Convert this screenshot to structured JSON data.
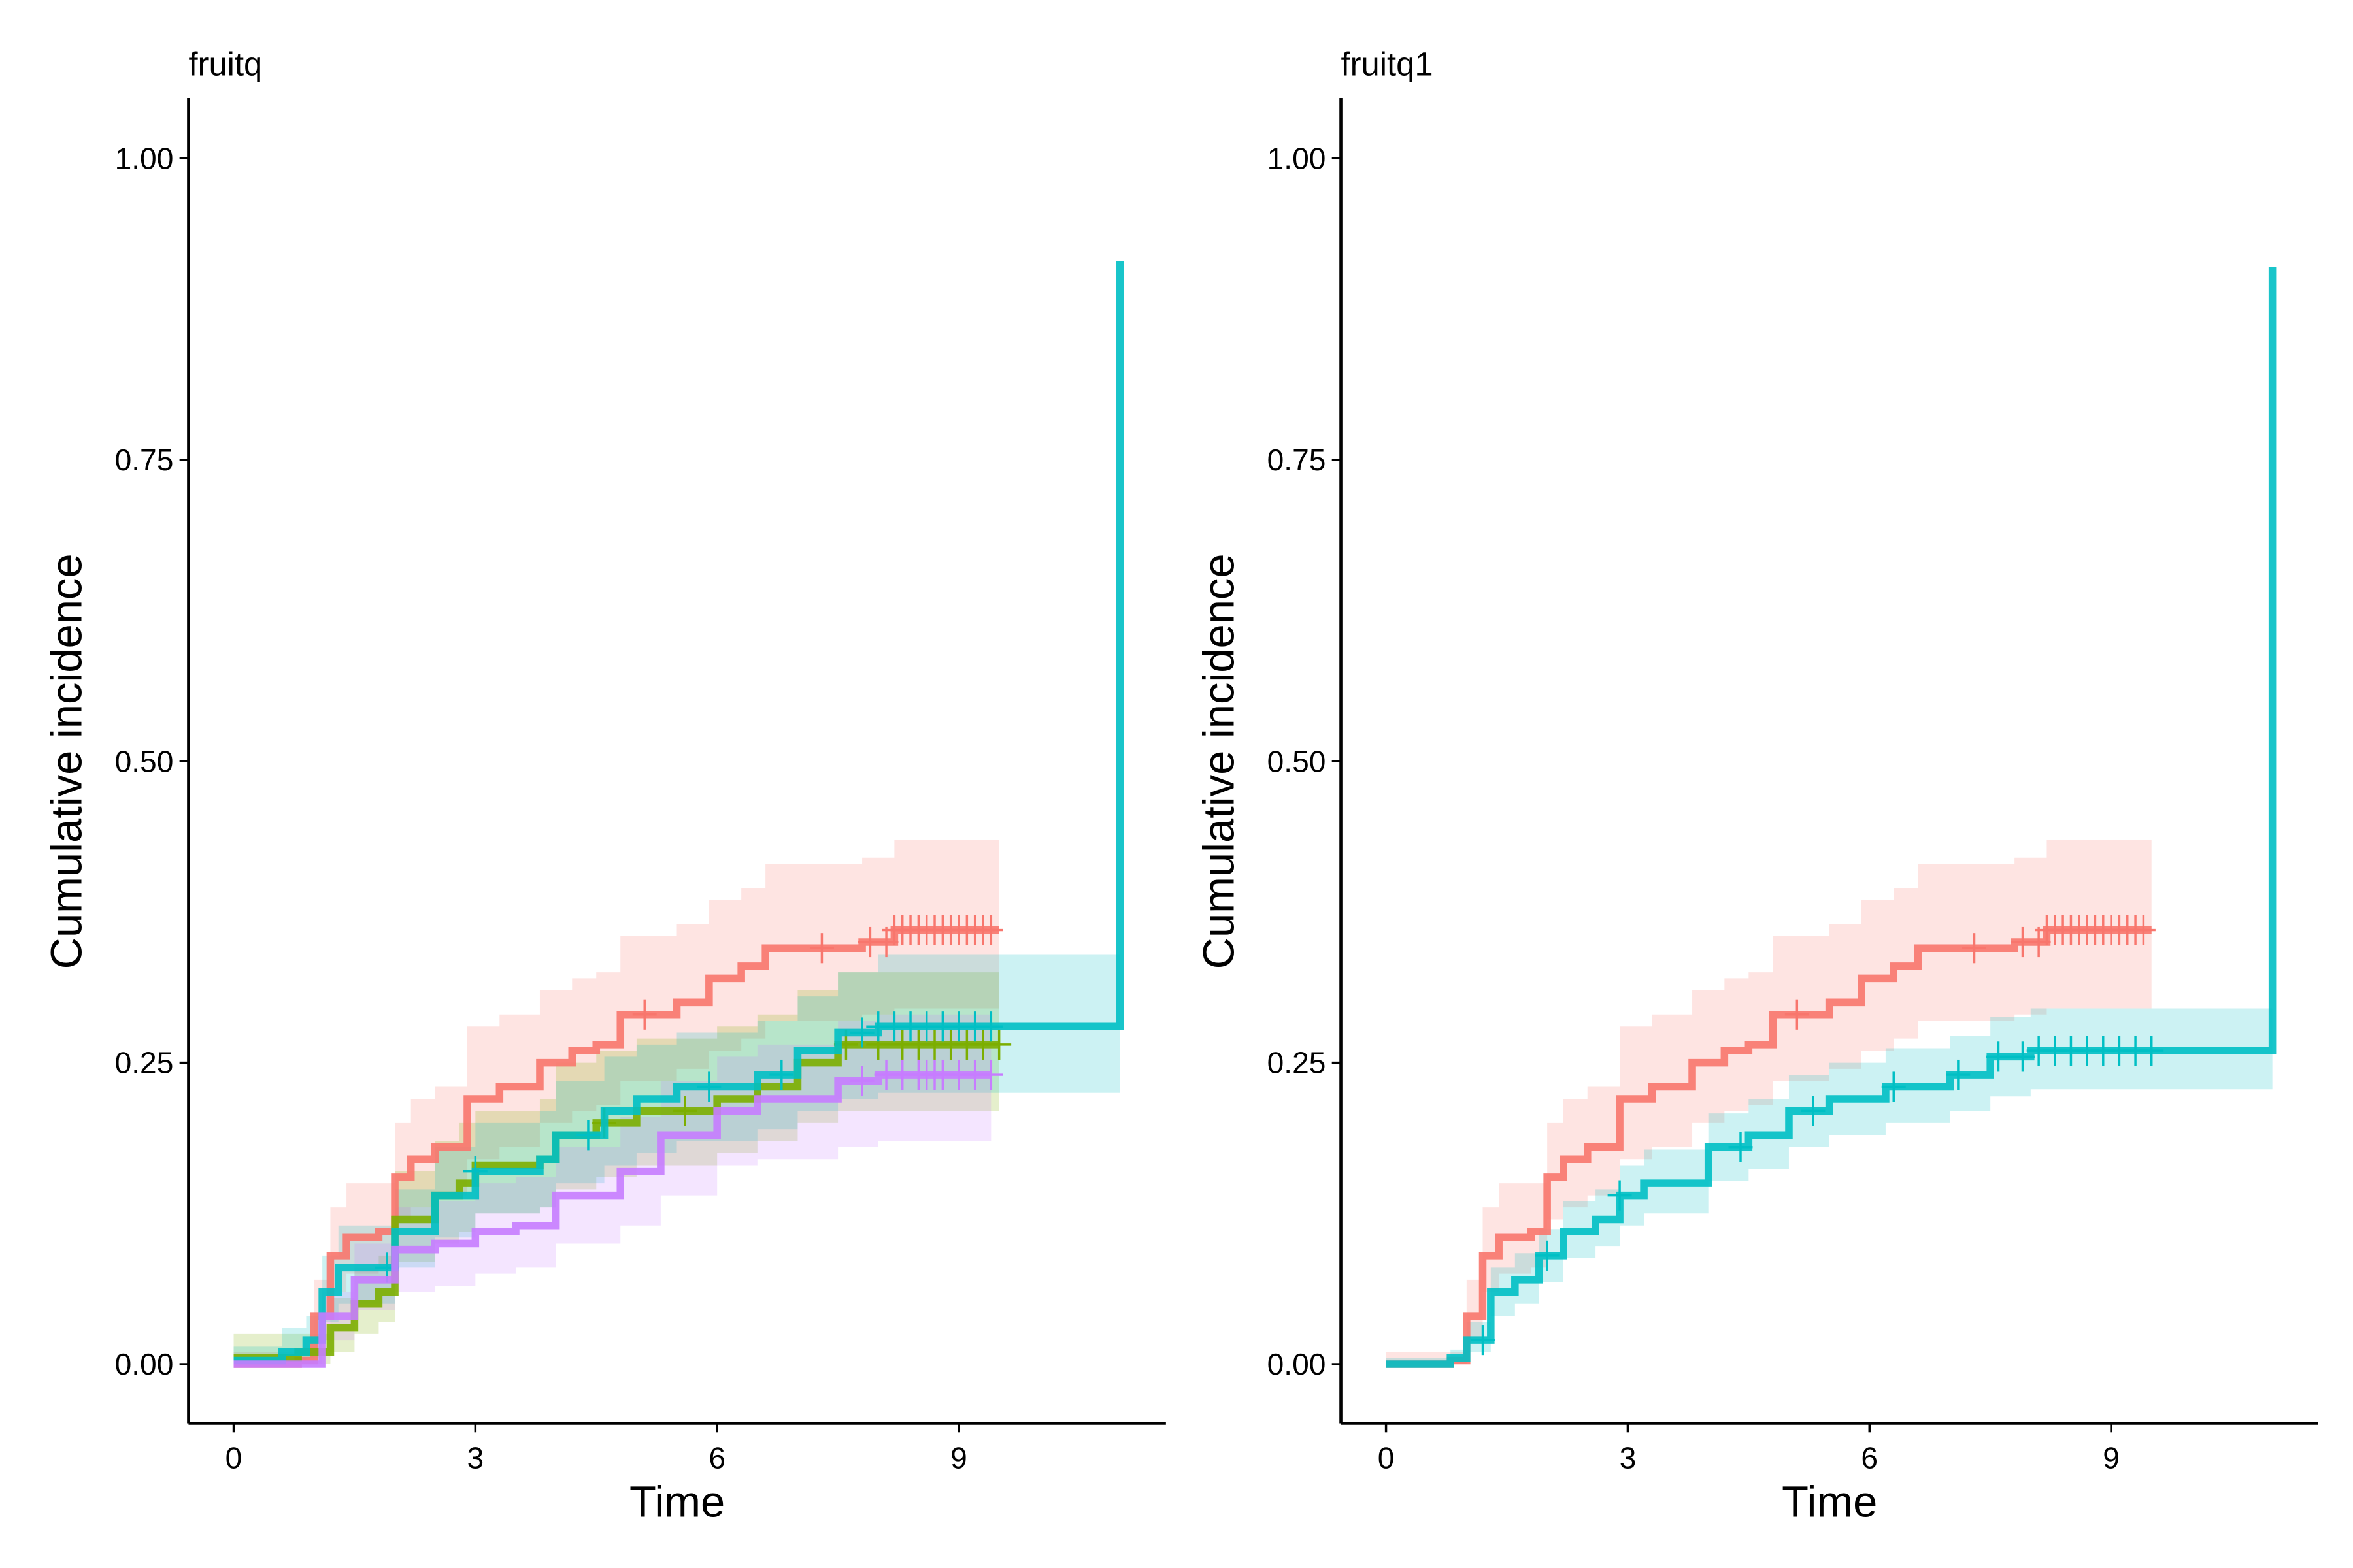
{
  "chart_data": [
    {
      "type": "line",
      "step": true,
      "title": "fruitq",
      "xlabel": "Time",
      "ylabel": "Cumulative incidence",
      "xlim": [
        -0.56,
        11.57
      ],
      "ylim": [
        -0.049,
        1.05
      ],
      "xticks": [
        "0",
        "3",
        "6",
        "9"
      ],
      "yticks": [
        "0.00",
        "0.25",
        "0.50",
        "0.75",
        "1.00"
      ],
      "grid": false,
      "legend": "none",
      "series": [
        {
          "color": "#F8766D",
          "x": [
            0,
            0.8,
            1.0,
            1.2,
            1.4,
            1.8,
            2.0,
            2.2,
            2.5,
            2.9,
            3.3,
            3.8,
            4.2,
            4.5,
            4.8,
            5.5,
            5.9,
            6.3,
            6.6,
            7.8,
            8.2,
            9.5
          ],
          "y": [
            0,
            0.003,
            0.04,
            0.09,
            0.105,
            0.11,
            0.155,
            0.17,
            0.18,
            0.22,
            0.23,
            0.25,
            0.26,
            0.265,
            0.29,
            0.3,
            0.32,
            0.33,
            0.345,
            0.35,
            0.36,
            0.36
          ],
          "lower": [
            0,
            0,
            0.02,
            0.06,
            0.075,
            0.08,
            0.12,
            0.13,
            0.14,
            0.17,
            0.18,
            0.2,
            0.21,
            0.215,
            0.235,
            0.245,
            0.26,
            0.27,
            0.285,
            0.29,
            0.295,
            0.295
          ],
          "upper": [
            0.01,
            0.01,
            0.07,
            0.13,
            0.15,
            0.15,
            0.2,
            0.22,
            0.23,
            0.28,
            0.29,
            0.31,
            0.32,
            0.325,
            0.355,
            0.365,
            0.385,
            0.395,
            0.415,
            0.42,
            0.435,
            0.435
          ],
          "censor": [
            5.1,
            7.3,
            7.9,
            8.1,
            8.2,
            8.3,
            8.4,
            8.5,
            8.6,
            8.7,
            8.8,
            8.9,
            9.0,
            9.1,
            9.2,
            9.3,
            9.4
          ]
        },
        {
          "color": "#7CAE00",
          "x": [
            0,
            0.8,
            1.2,
            1.5,
            1.8,
            2.0,
            2.5,
            2.8,
            3.0,
            3.8,
            4.0,
            4.5,
            5.0,
            6.0,
            6.5,
            7.0,
            7.5,
            9.5
          ],
          "y": [
            0.005,
            0.01,
            0.03,
            0.05,
            0.06,
            0.12,
            0.14,
            0.15,
            0.165,
            0.17,
            0.19,
            0.2,
            0.21,
            0.22,
            0.23,
            0.25,
            0.265,
            0.265
          ],
          "lower": [
            0,
            0,
            0.01,
            0.025,
            0.035,
            0.085,
            0.1,
            0.11,
            0.125,
            0.13,
            0.145,
            0.155,
            0.165,
            0.175,
            0.185,
            0.2,
            0.21,
            0.21
          ],
          "upper": [
            0.025,
            0.025,
            0.055,
            0.08,
            0.09,
            0.16,
            0.185,
            0.2,
            0.21,
            0.22,
            0.25,
            0.26,
            0.27,
            0.28,
            0.29,
            0.31,
            0.325,
            0.325
          ],
          "censor": [
            4.6,
            5.6,
            7.6,
            8.0,
            8.3,
            8.5,
            8.7,
            8.9,
            9.1,
            9.3,
            9.5
          ]
        },
        {
          "color": "#00BFC4",
          "x": [
            0,
            0.6,
            0.9,
            1.1,
            1.3,
            1.8,
            2.0,
            2.5,
            3.0,
            3.8,
            4.0,
            4.6,
            5.0,
            5.5,
            6.5,
            7.0,
            7.5,
            8.0,
            11.0
          ],
          "y": [
            0.003,
            0.01,
            0.02,
            0.06,
            0.08,
            0.08,
            0.11,
            0.14,
            0.16,
            0.17,
            0.19,
            0.21,
            0.22,
            0.23,
            0.24,
            0.26,
            0.275,
            0.28,
            0.28
          ],
          "lower": [
            0,
            0,
            0.005,
            0.035,
            0.05,
            0.05,
            0.08,
            0.105,
            0.125,
            0.13,
            0.15,
            0.165,
            0.175,
            0.185,
            0.195,
            0.21,
            0.22,
            0.225,
            0.225
          ],
          "upper": [
            0.015,
            0.03,
            0.04,
            0.09,
            0.115,
            0.115,
            0.145,
            0.18,
            0.2,
            0.21,
            0.235,
            0.255,
            0.265,
            0.275,
            0.285,
            0.305,
            0.325,
            0.34,
            0.34
          ],
          "final_jump": 0.915,
          "censor": [
            1.9,
            3.0,
            4.4,
            5.9,
            6.8,
            7.8,
            8.0,
            8.2,
            8.4,
            8.6,
            8.8,
            9.0,
            9.2,
            9.4
          ]
        },
        {
          "color": "#C77CFF",
          "x": [
            0,
            0.8,
            1.1,
            1.5,
            2.0,
            2.5,
            3.0,
            3.5,
            4.0,
            4.8,
            5.3,
            6.0,
            6.5,
            7.5,
            8.0,
            9.4
          ],
          "y": [
            0,
            0,
            0.04,
            0.07,
            0.095,
            0.1,
            0.11,
            0.115,
            0.14,
            0.16,
            0.19,
            0.21,
            0.22,
            0.235,
            0.24,
            0.24
          ],
          "lower": [
            0,
            0,
            0.02,
            0.045,
            0.06,
            0.065,
            0.075,
            0.08,
            0.1,
            0.115,
            0.14,
            0.165,
            0.17,
            0.18,
            0.185,
            0.185
          ],
          "upper": [
            0.005,
            0.005,
            0.06,
            0.1,
            0.13,
            0.135,
            0.15,
            0.155,
            0.18,
            0.205,
            0.235,
            0.255,
            0.265,
            0.285,
            0.29,
            0.29
          ],
          "censor": [
            7.8,
            8.1,
            8.3,
            8.5,
            8.6,
            8.7,
            8.8,
            9.0,
            9.2,
            9.4
          ]
        }
      ]
    },
    {
      "type": "line",
      "step": true,
      "title": "fruitq1",
      "xlabel": "Time",
      "ylabel": "Cumulative incidence",
      "xlim": [
        -0.56,
        11.57
      ],
      "ylim": [
        -0.049,
        1.05
      ],
      "xticks": [
        "0",
        "3",
        "6",
        "9"
      ],
      "yticks": [
        "0.00",
        "0.25",
        "0.50",
        "0.75",
        "1.00"
      ],
      "grid": false,
      "legend": "none",
      "series": [
        {
          "color": "#F8766D",
          "x": [
            0,
            0.8,
            1.0,
            1.2,
            1.4,
            1.8,
            2.0,
            2.2,
            2.5,
            2.9,
            3.3,
            3.8,
            4.2,
            4.5,
            4.8,
            5.5,
            5.9,
            6.3,
            6.6,
            7.8,
            8.2,
            9.5
          ],
          "y": [
            0,
            0.003,
            0.04,
            0.09,
            0.105,
            0.11,
            0.155,
            0.17,
            0.18,
            0.22,
            0.23,
            0.25,
            0.26,
            0.265,
            0.29,
            0.3,
            0.32,
            0.33,
            0.345,
            0.35,
            0.36,
            0.36
          ],
          "lower": [
            0,
            0,
            0.02,
            0.06,
            0.075,
            0.08,
            0.12,
            0.13,
            0.14,
            0.17,
            0.18,
            0.2,
            0.21,
            0.215,
            0.235,
            0.245,
            0.26,
            0.27,
            0.285,
            0.29,
            0.295,
            0.295
          ],
          "upper": [
            0.01,
            0.01,
            0.07,
            0.13,
            0.15,
            0.15,
            0.2,
            0.22,
            0.23,
            0.28,
            0.29,
            0.31,
            0.32,
            0.325,
            0.355,
            0.365,
            0.385,
            0.395,
            0.415,
            0.42,
            0.435,
            0.435
          ],
          "censor": [
            5.1,
            7.3,
            7.9,
            8.1,
            8.2,
            8.3,
            8.4,
            8.5,
            8.6,
            8.7,
            8.8,
            8.9,
            9.0,
            9.1,
            9.2,
            9.3,
            9.4
          ]
        },
        {
          "color": "#00BFC4",
          "x": [
            0,
            0.8,
            1.0,
            1.3,
            1.6,
            1.9,
            2.2,
            2.6,
            2.9,
            3.2,
            3.8,
            4.0,
            4.5,
            5.0,
            5.5,
            6.2,
            7.0,
            7.5,
            8.0,
            11.0
          ],
          "y": [
            0,
            0.005,
            0.02,
            0.06,
            0.07,
            0.09,
            0.11,
            0.12,
            0.14,
            0.15,
            0.15,
            0.18,
            0.19,
            0.21,
            0.22,
            0.23,
            0.24,
            0.255,
            0.26,
            0.26
          ],
          "lower": [
            0,
            0,
            0.01,
            0.04,
            0.05,
            0.068,
            0.088,
            0.098,
            0.115,
            0.125,
            0.125,
            0.152,
            0.162,
            0.18,
            0.19,
            0.2,
            0.21,
            0.222,
            0.228,
            0.228
          ],
          "upper": [
            0.005,
            0.012,
            0.035,
            0.08,
            0.092,
            0.112,
            0.135,
            0.145,
            0.165,
            0.178,
            0.178,
            0.208,
            0.22,
            0.24,
            0.25,
            0.262,
            0.272,
            0.288,
            0.295,
            0.295
          ],
          "final_jump": 0.91,
          "censor": [
            1.2,
            2.0,
            2.9,
            4.4,
            5.3,
            6.3,
            7.1,
            7.6,
            7.9,
            8.1,
            8.3,
            8.5,
            8.7,
            8.9,
            9.1,
            9.3,
            9.5
          ]
        }
      ]
    }
  ]
}
